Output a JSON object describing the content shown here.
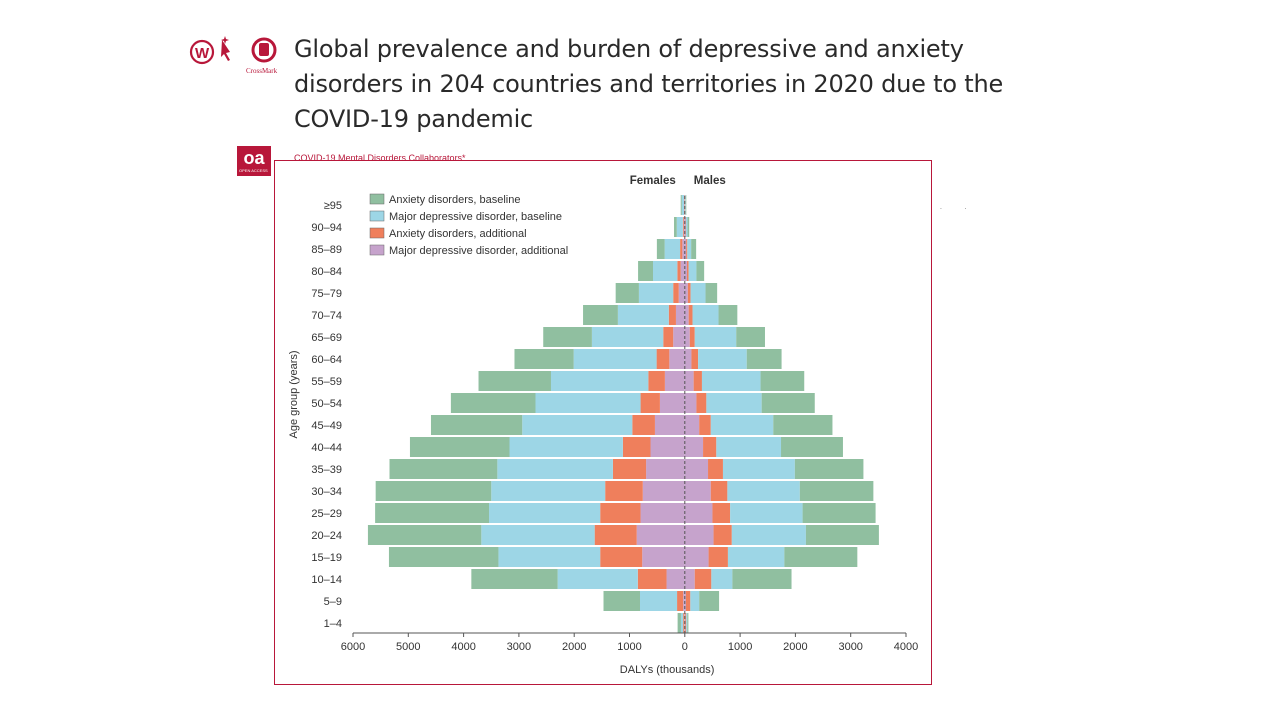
{
  "header": {
    "title": "Global prevalence and burden of depressive and anxiety disorders in 204 countries and territories in 2020 due to the COVID-19 pandemic",
    "badge": "oa",
    "badge_sub": "OPEN ACCESS",
    "crossmark": "CrossMark",
    "authors": "COVID-19 Mental Disorders Collaborators*"
  },
  "colors": {
    "anxiety_baseline": "#90bfa0",
    "mdd_baseline": "#9dd6e6",
    "anxiety_additional": "#ef7f5c",
    "mdd_additional": "#c6a3cc",
    "frame": "#b8173a",
    "logo": "#b8173a"
  },
  "chart_data": {
    "type": "bar",
    "orientation": "horizontal-population-pyramid",
    "xlabel": "DALYs (thousands)",
    "ylabel": "Age group (years)",
    "left_label": "Females",
    "right_label": "Males",
    "xlim": [
      -6000,
      4000
    ],
    "x_ticks": [
      -6000,
      -5000,
      -4000,
      -3000,
      -2000,
      -1000,
      0,
      1000,
      2000,
      3000,
      4000
    ],
    "x_tick_labels": [
      "6000",
      "5000",
      "4000",
      "3000",
      "2000",
      "1000",
      "0",
      "1000",
      "2000",
      "3000",
      "4000"
    ],
    "legend_position": "top-left",
    "categories": [
      "1–4",
      "5–9",
      "10–14",
      "15–19",
      "20–24",
      "25–29",
      "30–34",
      "35–39",
      "40–44",
      "45–49",
      "50–54",
      "55–59",
      "60–64",
      "65–69",
      "70–74",
      "75–79",
      "80–84",
      "85–89",
      "90–94",
      "≥95"
    ],
    "series": [
      {
        "name": "Major depressive disorder, additional",
        "females": [
          10,
          30,
          330,
          770,
          870,
          800,
          760,
          700,
          620,
          540,
          450,
          360,
          280,
          210,
          160,
          110,
          75,
          45,
          20,
          8
        ],
        "males": [
          10,
          20,
          180,
          430,
          520,
          500,
          470,
          420,
          330,
          260,
          210,
          160,
          120,
          90,
          70,
          55,
          40,
          25,
          12,
          4
        ]
      },
      {
        "name": "Anxiety disorders, additional",
        "females": [
          20,
          110,
          520,
          760,
          760,
          730,
          680,
          600,
          500,
          410,
          350,
          300,
          230,
          180,
          130,
          100,
          60,
          40,
          15,
          6
        ],
        "males": [
          15,
          80,
          300,
          350,
          330,
          320,
          300,
          270,
          240,
          210,
          180,
          150,
          120,
          90,
          70,
          50,
          30,
          20,
          8,
          3
        ]
      },
      {
        "name": "Major depressive disorder, baseline",
        "females": [
          40,
          670,
          1450,
          1840,
          2050,
          2010,
          2060,
          2090,
          2050,
          1990,
          1900,
          1760,
          1500,
          1290,
          920,
          620,
          440,
          280,
          110,
          40
        ],
        "males": [
          20,
          160,
          380,
          1020,
          1340,
          1310,
          1310,
          1300,
          1170,
          1130,
          1000,
          1060,
          880,
          750,
          470,
          270,
          140,
          70,
          30,
          10
        ],
        "values_note": ""
      },
      {
        "name": "Anxiety disorders, baseline",
        "females": [
          60,
          660,
          1560,
          1980,
          2050,
          2060,
          2090,
          1950,
          1800,
          1650,
          1530,
          1310,
          1070,
          880,
          630,
          420,
          270,
          140,
          50,
          20
        ],
        "males": [
          20,
          360,
          1070,
          1320,
          1320,
          1320,
          1330,
          1240,
          1120,
          1070,
          960,
          790,
          630,
          520,
          340,
          210,
          140,
          90,
          30,
          10
        ]
      }
    ]
  }
}
